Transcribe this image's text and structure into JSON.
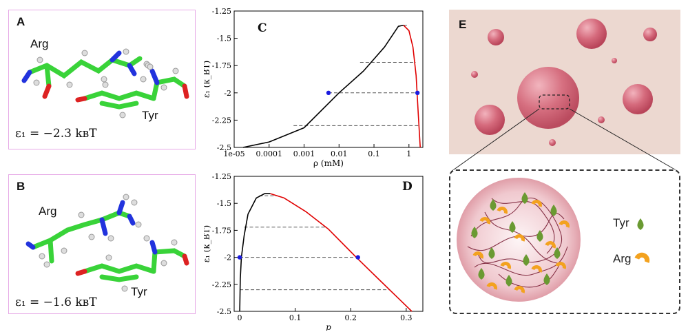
{
  "panels": {
    "A": {
      "letter": "A",
      "arg": "Arg",
      "tyr": "Tyr",
      "energy": "ε₁ = −2.3 kʙT"
    },
    "B": {
      "letter": "B",
      "arg": "Arg",
      "tyr": "Tyr",
      "energy": "ε₁ = −1.6 kʙT"
    },
    "C": {
      "letter": "C"
    },
    "D": {
      "letter": "D"
    },
    "E": {
      "letter": "E",
      "legend": {
        "tyr": "Tyr",
        "arg": "Arg"
      }
    }
  },
  "colors": {
    "carbon": "#39d339",
    "nitrogen": "#2233dd",
    "oxygen": "#dd2222",
    "hydrogen": "#dddddd",
    "droplet": "#c95a6c",
    "background_E": "#ecd8d0",
    "tyr": "#6a9a32",
    "arg": "#f3a21f"
  },
  "chart_data": [
    {
      "id": "C",
      "type": "line",
      "xscale": "log",
      "xlabel": "ρ (mM)",
      "ylabel": "ε₁ (k_BT)",
      "xticks": [
        "1e-05",
        "0.0001",
        "0.001",
        "0.01",
        "0.1",
        "1"
      ],
      "yticks": [
        "-1.25",
        "-1.5",
        "-1.75",
        "-2",
        "-2.25",
        "-2.5"
      ],
      "xlim": [
        1e-05,
        2.5
      ],
      "ylim": [
        -2.5,
        -1.25
      ],
      "series": [
        {
          "color": "#000000",
          "points": [
            [
              1.8e-05,
              -2.5
            ],
            [
              0.0001,
              -2.45
            ],
            [
              0.001,
              -2.32
            ],
            [
              0.01,
              -2.0
            ],
            [
              0.05,
              -1.8
            ],
            [
              0.2,
              -1.58
            ],
            [
              0.5,
              -1.39
            ],
            [
              0.7,
              -1.38
            ]
          ]
        },
        {
          "color": "#e00000",
          "points": [
            [
              0.7,
              -1.38
            ],
            [
              1.0,
              -1.43
            ],
            [
              1.3,
              -1.58
            ],
            [
              1.6,
              -1.84
            ],
            [
              1.85,
              -2.2
            ],
            [
              2.1,
              -2.5
            ]
          ]
        }
      ],
      "tie_lines": [
        {
          "y": -1.38,
          "x1": 0.7,
          "x2": 0.9
        },
        {
          "y": -1.72,
          "x1": 0.04,
          "x2": 1.55
        },
        {
          "y": -2.0,
          "x1": 0.005,
          "x2": 1.75
        },
        {
          "y": -2.3,
          "x1": 0.0005,
          "x2": 1.95
        }
      ],
      "markers": [
        [
          0.005,
          -2.0
        ],
        [
          1.75,
          -2.0
        ]
      ]
    },
    {
      "id": "D",
      "type": "line",
      "xlabel": "p",
      "ylabel": "ε₁ (k_BT)",
      "xticks": [
        "0",
        "0.1",
        "0.2",
        "0.3"
      ],
      "yticks": [
        "-1.25",
        "-1.5",
        "-1.75",
        "-2",
        "-2.25",
        "-2.5"
      ],
      "xlim": [
        -0.01,
        0.33
      ],
      "ylim": [
        -2.5,
        -1.25
      ],
      "series": [
        {
          "color": "#000000",
          "points": [
            [
              0.0,
              -2.5
            ],
            [
              0.001,
              -2.2
            ],
            [
              0.003,
              -2.0
            ],
            [
              0.008,
              -1.8
            ],
            [
              0.015,
              -1.6
            ],
            [
              0.03,
              -1.45
            ],
            [
              0.045,
              -1.41
            ],
            [
              0.055,
              -1.41
            ]
          ]
        },
        {
          "color": "#e00000",
          "points": [
            [
              0.055,
              -1.41
            ],
            [
              0.08,
              -1.45
            ],
            [
              0.12,
              -1.58
            ],
            [
              0.16,
              -1.74
            ],
            [
              0.21,
              -2.0
            ],
            [
              0.25,
              -2.2
            ],
            [
              0.29,
              -2.4
            ],
            [
              0.31,
              -2.5
            ]
          ]
        }
      ],
      "tie_lines": [
        {
          "y": -1.43,
          "x1": 0.035,
          "x2": 0.068
        },
        {
          "y": -1.72,
          "x1": 0.008,
          "x2": 0.155
        },
        {
          "y": -2.0,
          "x1": 0.0,
          "x2": 0.213
        },
        {
          "y": -2.3,
          "x1": 0.0,
          "x2": 0.27
        }
      ],
      "markers": [
        [
          0.0,
          -2.0
        ],
        [
          0.213,
          -2.0
        ]
      ]
    }
  ]
}
